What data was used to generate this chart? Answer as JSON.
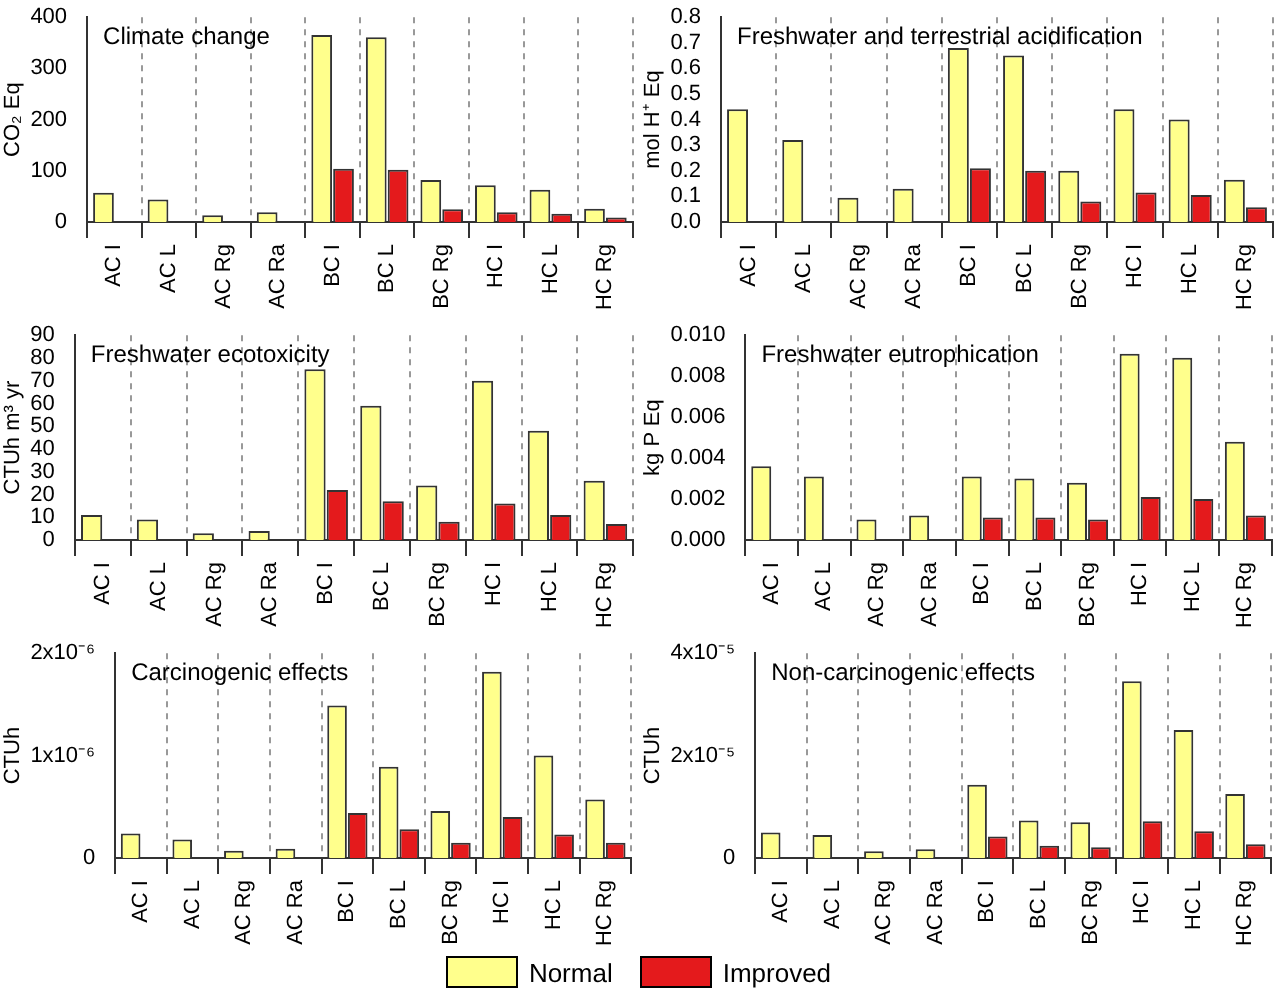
{
  "chart_data": [
    {
      "type": "bar",
      "title": "Climate change",
      "ylabel": "CO₂ Eq",
      "categories": [
        "AC I",
        "AC L",
        "AC Rg",
        "AC Ra",
        "BC I",
        "BC L",
        "BC Rg",
        "HC I",
        "HC L",
        "HC Rg"
      ],
      "series": [
        {
          "name": "Normal",
          "color": "#ffff8c",
          "values": [
            57,
            44,
            13,
            19,
            365,
            361,
            82,
            72,
            63,
            26
          ]
        },
        {
          "name": "Improved",
          "color": "#e41a1c",
          "values": [
            null,
            null,
            null,
            null,
            104,
            102,
            25,
            19,
            16,
            9
          ]
        }
      ],
      "ylim": [
        0,
        400
      ],
      "yticks": [
        0,
        100,
        200,
        300,
        400
      ],
      "grid": "x",
      "legend": "bottom"
    },
    {
      "type": "bar",
      "title": "Freshwater and terrestrial acidification",
      "ylabel": "mol H⁺ Eq",
      "categories": [
        "AC I",
        "AC L",
        "AC Rg",
        "AC Ra",
        "BC I",
        "BC L",
        "BC Rg",
        "HC I",
        "HC L",
        "HC Rg"
      ],
      "series": [
        {
          "color": "#ffff8c",
          "values": [
            0.44,
            0.32,
            0.095,
            0.13,
            0.68,
            0.65,
            0.2,
            0.44,
            0.4,
            0.165
          ]
        },
        {
          "color": "#e41a1c",
          "values": [
            null,
            null,
            null,
            null,
            0.21,
            0.2,
            0.08,
            0.115,
            0.105,
            0.058
          ]
        }
      ],
      "ylim": [
        0,
        0.8
      ],
      "yticks": [
        {
          "value": 0,
          "label": "0.0"
        },
        0.1,
        0.2,
        0.3,
        0.4,
        0.5,
        0.6,
        0.7,
        0.8
      ],
      "grid": "x"
    },
    {
      "type": "bar",
      "title": "Freshwater ecotoxicity",
      "ylabel": "CTUh m³ yr",
      "categories": [
        "AC I",
        "AC L",
        "AC Rg",
        "AC Ra",
        "BC I",
        "BC L",
        "BC Rg",
        "HC I",
        "HC L",
        "HC Rg"
      ],
      "series": [
        {
          "color": "#ffff8c",
          "values": [
            11,
            9,
            3,
            4,
            75,
            59,
            24,
            70,
            48,
            26
          ]
        },
        {
          "color": "#e41a1c",
          "values": [
            null,
            null,
            null,
            null,
            22,
            17,
            8,
            16,
            11,
            7
          ]
        }
      ],
      "ylim": [
        0,
        90
      ],
      "yticks": [
        0,
        10,
        20,
        30,
        40,
        50,
        60,
        70,
        80,
        90
      ],
      "grid": "x"
    },
    {
      "type": "bar",
      "title": "Freshwater eutrophication",
      "ylabel": "kg P Eq",
      "categories": [
        "AC I",
        "AC L",
        "AC Rg",
        "AC Ra",
        "BC I",
        "BC L",
        "BC Rg",
        "HC I",
        "HC L",
        "HC Rg"
      ],
      "series": [
        {
          "color": "#ffff8c",
          "values": [
            0.0036,
            0.0031,
            0.001,
            0.0012,
            0.0031,
            0.003,
            0.0028,
            0.0091,
            0.0089,
            0.0048
          ]
        },
        {
          "color": "#e41a1c",
          "values": [
            null,
            null,
            null,
            null,
            0.0011,
            0.0011,
            0.001,
            0.0021,
            0.002,
            0.0012
          ]
        }
      ],
      "ylim": [
        0,
        0.01
      ],
      "yticks": [
        {
          "value": 0,
          "label": "0.000"
        },
        {
          "value": 0.002,
          "label": "0.002"
        },
        {
          "value": 0.004,
          "label": "0.004"
        },
        {
          "value": 0.006,
          "label": "0.006"
        },
        {
          "value": 0.008,
          "label": "0.008"
        },
        {
          "value": 0.01,
          "label": "0.010"
        }
      ],
      "grid": "x"
    },
    {
      "type": "bar",
      "title": "Carcinogenic effects",
      "ylabel": "CTUh",
      "categories": [
        "AC I",
        "AC L",
        "AC Rg",
        "AC Ra",
        "BC I",
        "BC L",
        "BC Rg",
        "HC I",
        "HC L",
        "HC Rg"
      ],
      "series": [
        {
          "color": "#ffff8c",
          "values": [
            2.4e-07,
            1.8e-07,
            7e-08,
            9e-08,
            1.49e-06,
            8.9e-07,
            4.6e-07,
            1.82e-06,
            1e-06,
            5.7e-07
          ]
        },
        {
          "color": "#e41a1c",
          "values": [
            null,
            null,
            null,
            null,
            4.4e-07,
            2.8e-07,
            1.5e-07,
            4e-07,
            2.3e-07,
            1.5e-07
          ]
        }
      ],
      "ylim": [
        0,
        2e-06
      ],
      "yticks": [
        0,
        {
          "value": 1e-06,
          "label": "1x10⁻⁶"
        },
        {
          "value": 2e-06,
          "label": "2x10⁻⁶"
        }
      ],
      "grid": "x"
    },
    {
      "type": "bar",
      "title": "Non-carcinogenic effects",
      "ylabel": "CTUh",
      "categories": [
        "AC I",
        "AC L",
        "AC Rg",
        "AC Ra",
        "BC I",
        "BC L",
        "BC Rg",
        "HC I",
        "HC L",
        "HC Rg"
      ],
      "series": [
        {
          "color": "#ffff8c",
          "values": [
            5e-06,
            4.5e-06,
            1.3e-06,
            1.7e-06,
            1.43e-05,
            7.3e-06,
            7e-06,
            3.45e-05,
            2.5e-05,
            1.25e-05
          ]
        },
        {
          "color": "#e41a1c",
          "values": [
            null,
            null,
            null,
            null,
            4.2e-06,
            2.4e-06,
            2.1e-06,
            7.2e-06,
            5.2e-06,
            2.7e-06
          ]
        }
      ],
      "ylim": [
        0,
        4e-05
      ],
      "yticks": [
        0,
        {
          "value": 2e-05,
          "label": "2x10⁻⁵"
        },
        {
          "value": 4e-05,
          "label": "4x10⁻⁵"
        }
      ],
      "grid": "x"
    }
  ]
}
